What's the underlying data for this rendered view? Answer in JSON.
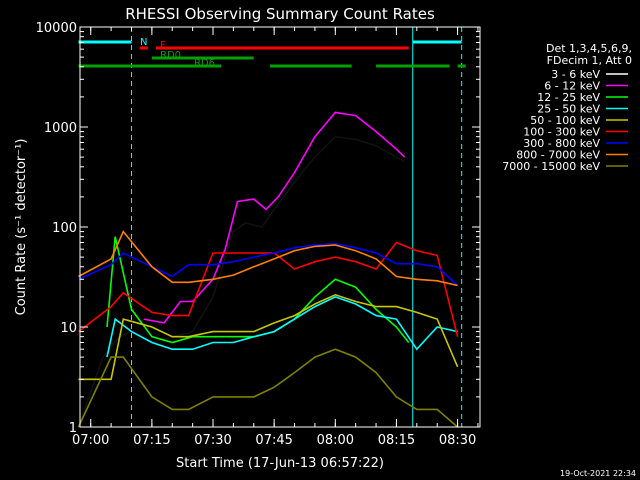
{
  "chart_data": {
    "type": "line",
    "title": "RHESSI Observing Summary Count Rates",
    "xlabel": "Start Time (17-Jun-13 06:57:22)",
    "ylabel": "Count Rate (s⁻¹ detector⁻¹)",
    "y_scale": "log",
    "ylim": [
      1,
      10000
    ],
    "xlim": [
      "06:57:22",
      "08:35:30"
    ],
    "x_ticks": [
      "07:00",
      "07:15",
      "07:30",
      "07:45",
      "08:00",
      "08:15",
      "08:30"
    ],
    "y_ticks": [
      "1",
      "10",
      "100",
      "1000",
      "10000"
    ],
    "legend_title": [
      "Det 1,3,4,5,6,9,",
      "FDecim 1, Att 0"
    ],
    "legend_position": "right",
    "footer_date": "19-Oct-2021 22:34",
    "series": [
      {
        "name": "3 - 6 keV",
        "color": "#000000",
        "x": [
          "06:57",
          "07:03",
          "07:07",
          "07:10",
          "07:15",
          "07:20",
          "07:25",
          "07:30",
          "07:35",
          "07:38",
          "07:42",
          "07:45",
          "07:50",
          "07:55",
          "08:00",
          "08:05",
          "08:10",
          "08:15",
          "08:17"
        ],
        "y": [
          1,
          5,
          8,
          9,
          7,
          8,
          9,
          20,
          90,
          110,
          100,
          150,
          280,
          500,
          800,
          750,
          650,
          500,
          450
        ]
      },
      {
        "name": "6 - 12 keV",
        "color": "#ff00ff",
        "x": [
          "07:13",
          "07:18",
          "07:22",
          "07:25",
          "07:30",
          "07:33",
          "07:36",
          "07:40",
          "07:43",
          "07:46",
          "07:50",
          "07:55",
          "08:00",
          "08:05",
          "08:10",
          "08:15",
          "08:17"
        ],
        "y": [
          12,
          11,
          18,
          18,
          30,
          60,
          180,
          190,
          150,
          200,
          350,
          800,
          1400,
          1300,
          900,
          600,
          500
        ]
      },
      {
        "name": "12 - 25 keV",
        "color": "#00ff00",
        "x": [
          "07:04",
          "07:06",
          "07:10",
          "07:15",
          "07:20",
          "07:25",
          "07:30",
          "07:35",
          "07:40",
          "07:45",
          "07:50",
          "07:55",
          "08:00",
          "08:05",
          "08:10",
          "08:15",
          "08:18"
        ],
        "y": [
          10,
          80,
          15,
          8,
          7,
          8,
          8,
          8,
          8,
          9,
          12,
          20,
          30,
          25,
          15,
          10,
          7
        ]
      },
      {
        "name": "25 - 50 keV",
        "color": "#00ffff",
        "x": [
          "07:04",
          "07:06",
          "07:10",
          "07:15",
          "07:20",
          "07:25",
          "07:30",
          "07:35",
          "07:40",
          "07:45",
          "07:50",
          "07:55",
          "08:00",
          "08:05",
          "08:10",
          "08:15",
          "08:20",
          "08:25",
          "08:30"
        ],
        "y": [
          5,
          12,
          9,
          7,
          6,
          6,
          7,
          7,
          8,
          9,
          12,
          16,
          20,
          17,
          13,
          12,
          6,
          10,
          9
        ]
      },
      {
        "name": "50 - 100 keV",
        "color": "#c8c800",
        "x": [
          "06:57",
          "07:05",
          "07:08",
          "07:15",
          "07:20",
          "07:24",
          "07:30",
          "07:35",
          "07:40",
          "07:45",
          "07:50",
          "07:55",
          "08:00",
          "08:05",
          "08:10",
          "08:15",
          "08:20",
          "08:25",
          "08:30"
        ],
        "y": [
          3,
          3,
          12,
          10,
          8,
          8,
          9,
          9,
          9,
          11,
          13,
          17,
          21,
          18,
          16,
          16,
          14,
          12,
          4
        ]
      },
      {
        "name": "100 - 300 keV",
        "color": "#ff0000",
        "x": [
          "06:57",
          "07:05",
          "07:08",
          "07:15",
          "07:20",
          "07:24",
          "07:30",
          "07:35",
          "07:40",
          "07:45",
          "07:50",
          "07:55",
          "08:00",
          "08:05",
          "08:10",
          "08:15",
          "08:20",
          "08:25",
          "08:30"
        ],
        "y": [
          9,
          16,
          22,
          14,
          13,
          13,
          55,
          55,
          55,
          55,
          38,
          45,
          50,
          45,
          38,
          70,
          58,
          52,
          8
        ]
      },
      {
        "name": "300 - 800 keV",
        "color": "#0000ff",
        "x": [
          "06:57",
          "07:05",
          "07:08",
          "07:15",
          "07:20",
          "07:24",
          "07:30",
          "07:35",
          "07:40",
          "07:45",
          "07:50",
          "07:55",
          "08:00",
          "08:05",
          "08:10",
          "08:15",
          "08:20",
          "08:25",
          "08:30"
        ],
        "y": [
          30,
          42,
          55,
          40,
          32,
          42,
          42,
          45,
          50,
          55,
          62,
          66,
          68,
          62,
          55,
          43,
          43,
          40,
          26
        ]
      },
      {
        "name": "800 - 7000 keV",
        "color": "#ff8000",
        "x": [
          "06:57",
          "07:05",
          "07:08",
          "07:15",
          "07:20",
          "07:24",
          "07:30",
          "07:35",
          "07:40",
          "07:45",
          "07:50",
          "07:55",
          "08:00",
          "08:05",
          "08:10",
          "08:15",
          "08:20",
          "08:25",
          "08:30"
        ],
        "y": [
          32,
          48,
          90,
          40,
          28,
          28,
          30,
          33,
          40,
          48,
          58,
          64,
          66,
          58,
          48,
          32,
          30,
          29,
          26
        ]
      },
      {
        "name": "7000 - 15000 keV",
        "color": "#808000",
        "x": [
          "06:57",
          "07:05",
          "07:08",
          "07:15",
          "07:20",
          "07:24",
          "07:30",
          "07:35",
          "07:40",
          "07:45",
          "07:50",
          "07:55",
          "08:00",
          "08:05",
          "08:10",
          "08:15",
          "08:20",
          "08:25",
          "08:30"
        ],
        "y": [
          1,
          5,
          5,
          2,
          1.5,
          1.5,
          2,
          2,
          2,
          2.5,
          3.5,
          5,
          6,
          5,
          3.5,
          2,
          1.5,
          1.5,
          1
        ]
      }
    ],
    "flags": [
      {
        "label": "N",
        "color": "#00ffff",
        "intervals": [
          [
            "06:57",
            "07:10"
          ],
          [
            "08:19",
            "08:31"
          ]
        ]
      },
      {
        "label": "F",
        "color": "#ff0000",
        "intervals": [
          [
            "07:12",
            "07:14"
          ],
          [
            "07:16",
            "08:18"
          ]
        ]
      },
      {
        "label": "RD0",
        "color": "#00a000",
        "intervals": [
          [
            "07:15",
            "07:40"
          ]
        ]
      },
      {
        "label": "RD6",
        "color": "#00a000",
        "intervals": [
          [
            "06:57",
            "07:32"
          ],
          [
            "07:44",
            "08:04"
          ],
          [
            "08:10",
            "08:28"
          ],
          [
            "08:30",
            "08:32"
          ]
        ]
      }
    ],
    "vertical_lines": [
      {
        "x": "07:10",
        "color": "#00ffff",
        "style": "dashed"
      },
      {
        "x": "08:19",
        "color": "#00ffff",
        "style": "solid"
      },
      {
        "x": "08:31",
        "color": "#00ffff",
        "style": "dashed"
      }
    ]
  }
}
